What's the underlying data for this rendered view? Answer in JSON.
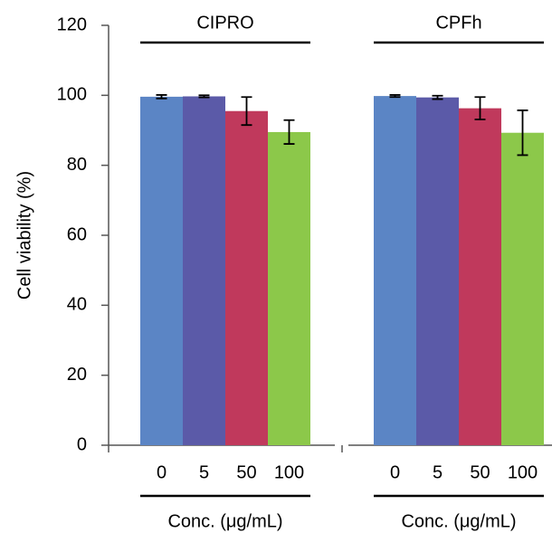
{
  "chart_data": {
    "type": "bar",
    "y_label": "Cell viability (%)",
    "x_label": "Conc. (μg/mL)",
    "ylim": [
      0,
      120
    ],
    "yticks": [
      0,
      20,
      40,
      60,
      80,
      100,
      120
    ],
    "colors": [
      "#5b85c5",
      "#5b5aa8",
      "#c0395c",
      "#8cc84a"
    ],
    "groups": [
      {
        "name": "CIPRO",
        "categories": [
          "0",
          "5",
          "50",
          "100"
        ],
        "values": [
          99.6,
          99.7,
          95.5,
          89.5
        ],
        "errors": [
          0.5,
          0.3,
          4.0,
          3.4
        ]
      },
      {
        "name": "CPFh",
        "categories": [
          "0",
          "5",
          "50",
          "100"
        ],
        "values": [
          99.8,
          99.4,
          96.3,
          89.3
        ],
        "errors": [
          0.3,
          0.5,
          3.2,
          6.4
        ]
      }
    ]
  }
}
